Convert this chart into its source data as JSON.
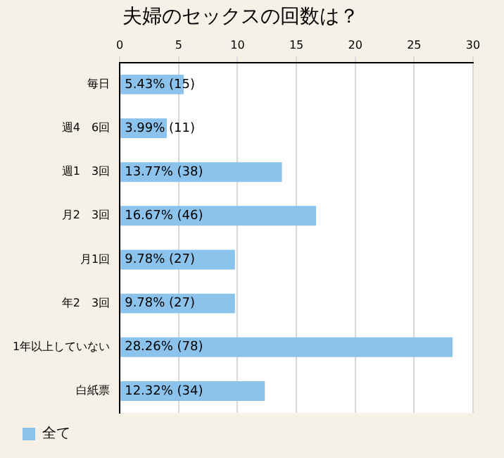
{
  "chart_data": {
    "type": "bar",
    "orientation": "horizontal",
    "title": "夫婦のセックスの回数は？",
    "categories": [
      "毎日",
      "週4　6回",
      "週1　3回",
      "月2　3回",
      "月1回",
      "年2　3回",
      "1年以上していない",
      "白紙票"
    ],
    "series": [
      {
        "name": "全て",
        "color": "#8cc3ec",
        "values": [
          5.43,
          3.99,
          13.77,
          16.67,
          9.78,
          9.78,
          28.26,
          12.32
        ],
        "value_labels": [
          "5.43% (15)",
          "3.99% (11)",
          "13.77% (38)",
          "16.67% (46)",
          "9.78% (27)",
          "9.78% (27)",
          "28.26% (78)",
          "12.32% (34)"
        ]
      }
    ],
    "xlim": [
      0,
      30
    ],
    "xticks": [
      0,
      5,
      10,
      15,
      20,
      25,
      30
    ],
    "grid": "x",
    "legend": "bottom left"
  }
}
